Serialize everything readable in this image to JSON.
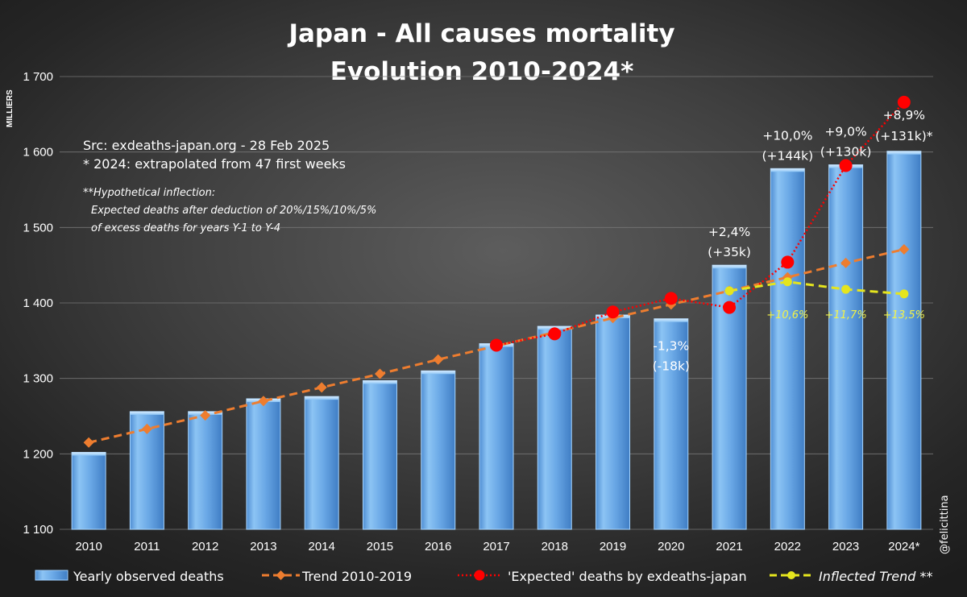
{
  "chart_data": {
    "type": "bar",
    "title": "Japan - All causes mortality",
    "subtitle": "Evolution 2010-2024*",
    "ylabel": "MILLIERS",
    "ylim": [
      1100,
      1700
    ],
    "yticks": [
      1100,
      1200,
      1300,
      1400,
      1500,
      1600,
      1700
    ],
    "ytick_labels": [
      "1 100",
      "1 200",
      "1 300",
      "1 400",
      "1 500",
      "1 600",
      "1 700"
    ],
    "categories": [
      "2010",
      "2011",
      "2012",
      "2013",
      "2014",
      "2015",
      "2016",
      "2017",
      "2018",
      "2019",
      "2020",
      "2021",
      "2022",
      "2023",
      "2024*"
    ],
    "grid": true,
    "legend_position": "bottom",
    "series": [
      {
        "name": "Yearly observed deaths",
        "kind": "bar",
        "color": "#6aa8e6",
        "values": [
          1202,
          1256,
          1256,
          1273,
          1276,
          1297,
          1310,
          1346,
          1369,
          1384,
          1379,
          1450,
          1578,
          1583,
          1601
        ]
      },
      {
        "name": "Trend 2010-2019",
        "kind": "dashed-line",
        "marker": "diamond",
        "color": "#ee7d2f",
        "values": [
          1215,
          1233,
          1251,
          1270,
          1288,
          1306,
          1325,
          1343,
          1361,
          1380,
          1398,
          1416,
          1434,
          1453,
          1471
        ]
      },
      {
        "name": "'Expected' deaths by exdeaths-japan",
        "kind": "dotted-line",
        "marker": "circle",
        "color": "#ff0000",
        "x": [
          "2017",
          "2018",
          "2019",
          "2020",
          "2021",
          "2022",
          "2023",
          "2024*"
        ],
        "values": [
          1344,
          1359,
          1388,
          1406,
          1394,
          1454,
          1582,
          1666
        ]
      },
      {
        "name": "Inflected Trend **",
        "kind": "dashed-line",
        "marker": "circle",
        "color": "#e5e51e",
        "x": [
          "2021",
          "2022",
          "2023",
          "2024*"
        ],
        "values": [
          1416,
          1428,
          1418,
          1412
        ]
      }
    ],
    "bar_annotations": [
      {
        "category": "2020",
        "pct": "-1,3%",
        "abs": "(-18k)",
        "placement": "below-top"
      },
      {
        "category": "2021",
        "pct": "+2,4%",
        "abs": "(+35k)",
        "placement": "above"
      },
      {
        "category": "2022",
        "pct": "+10,0%",
        "abs": "(+144k)",
        "placement": "above"
      },
      {
        "category": "2023",
        "pct": "+9,0%",
        "abs": "(+130k)",
        "placement": "above"
      },
      {
        "category": "2024*",
        "pct": "+8,9%",
        "abs": "(+131k)*",
        "placement": "above"
      }
    ],
    "inflected_annotations": [
      {
        "category": "2022",
        "label": "+10,6%"
      },
      {
        "category": "2023",
        "label": "+11,7%"
      },
      {
        "category": "2024*",
        "label": "+13,5%"
      }
    ],
    "notes": {
      "source": "Src: exdeaths-japan.org - 28 Feb 2025",
      "extrapolation": "* 2024: extrapolated from 47 first weeks",
      "inflection_lines": [
        "**Hypothetical inflection:",
        "Expected deaths after deduction of 20%/15%/10%/5%",
        "of excess deaths for years Y-1 to Y-4"
      ]
    },
    "credit": "@felicittina"
  }
}
